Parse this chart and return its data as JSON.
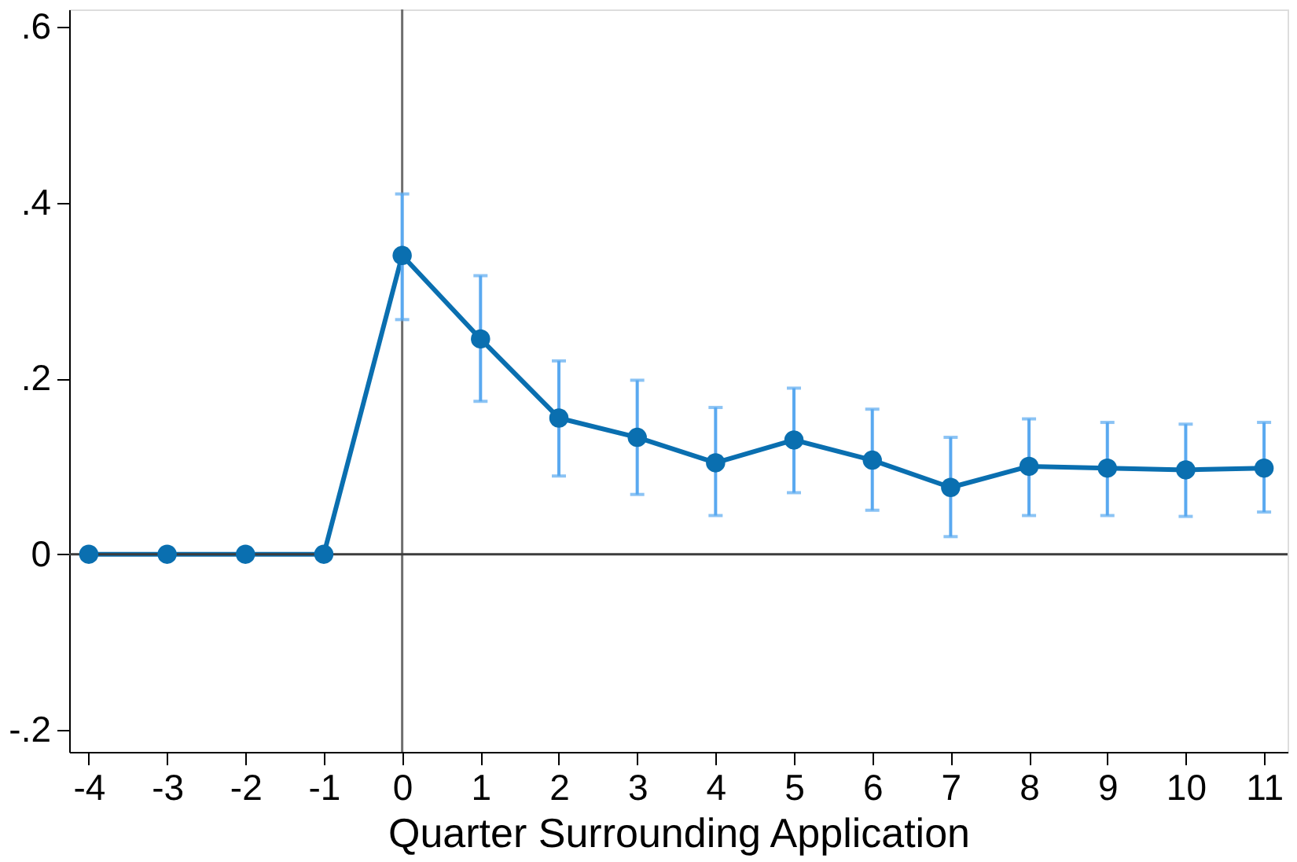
{
  "chart_data": {
    "type": "line",
    "xlabel": "Quarter Surrounding Application",
    "x": [
      -4,
      -3,
      -2,
      -1,
      0,
      1,
      2,
      3,
      4,
      5,
      6,
      7,
      8,
      9,
      10,
      11
    ],
    "series": [
      {
        "color": "#0a6fb0",
        "values": [
          0,
          0,
          0,
          0,
          0.34,
          0.245,
          0.155,
          0.133,
          0.104,
          0.13,
          0.107,
          0.076,
          0.1,
          0.098,
          0.096,
          0.098
        ],
        "errors": [
          null,
          null,
          null,
          null,
          [
            0.267,
            0.41
          ],
          [
            0.174,
            0.317
          ],
          [
            0.089,
            0.22
          ],
          [
            0.068,
            0.198
          ],
          [
            0.044,
            0.167
          ],
          [
            0.07,
            0.189
          ],
          [
            0.05,
            0.165
          ],
          [
            0.02,
            0.133
          ],
          [
            0.044,
            0.154
          ],
          [
            0.044,
            0.15
          ],
          [
            0.043,
            0.148
          ],
          [
            0.048,
            0.15
          ]
        ]
      }
    ],
    "xlim": [
      -4.25,
      11.3
    ],
    "xticks": [
      -4,
      -3,
      -2,
      -1,
      0,
      1,
      2,
      3,
      4,
      5,
      6,
      7,
      8,
      9,
      10,
      11
    ],
    "ylim": [
      -0.225,
      0.62
    ],
    "yticks": [
      {
        "value": -0.2,
        "label": "-.2"
      },
      {
        "value": 0,
        "label": "0"
      },
      {
        "value": 0.2,
        "label": ".2"
      },
      {
        "value": 0.4,
        "label": ".4"
      },
      {
        "value": 0.6,
        "label": ".6"
      }
    ],
    "ref_lines": [
      {
        "axis": "x",
        "value": 0,
        "color": "#6e6e6e"
      },
      {
        "axis": "y",
        "value": 0,
        "color": "#3c3c3c"
      }
    ],
    "marker": "circle",
    "line_style": "solid",
    "grid": false
  }
}
